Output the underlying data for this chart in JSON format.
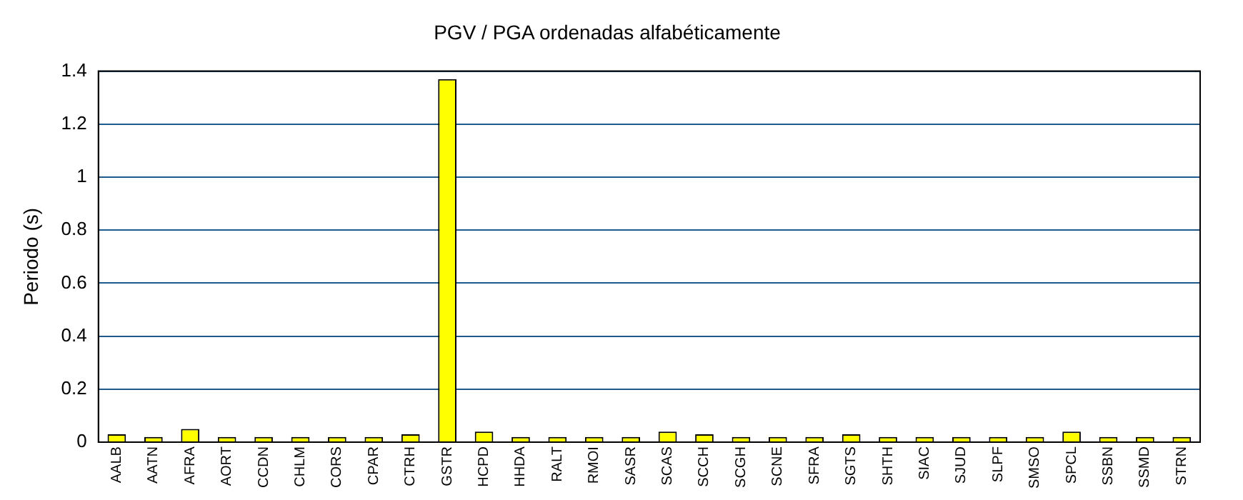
{
  "chart_data": {
    "type": "bar",
    "title": "PGV / PGA ordenadas alfabéticamente",
    "ylabel": "Periodo (s)",
    "categories": [
      "AALB",
      "AATN",
      "AFRA",
      "AORT",
      "CCDN",
      "CHLM",
      "CORS",
      "CPAR",
      "CTRH",
      "GSTR",
      "HCPD",
      "HHDA",
      "RALT",
      "RMOI",
      "SASR",
      "SCAS",
      "SCCH",
      "SCGH",
      "SCNE",
      "SFRA",
      "SGTS",
      "SHTH",
      "SIAC",
      "SJUD",
      "SLPF",
      "SMSO",
      "SPCL",
      "SSBN",
      "SSMD",
      "STRN"
    ],
    "values": [
      0.03,
      0.02,
      0.05,
      0.02,
      0.02,
      0.02,
      0.02,
      0.02,
      0.03,
      1.37,
      0.04,
      0.02,
      0.02,
      0.02,
      0.02,
      0.04,
      0.03,
      0.02,
      0.02,
      0.02,
      0.03,
      0.02,
      0.02,
      0.02,
      0.02,
      0.02,
      0.04,
      0.02,
      0.02,
      0.02
    ],
    "color": "#ffff00",
    "ylim": [
      0,
      1.4
    ],
    "yticks": [
      0,
      0.2,
      0.4,
      0.6,
      0.8,
      1,
      1.2,
      1.4
    ],
    "grid": "y",
    "legend": false
  }
}
